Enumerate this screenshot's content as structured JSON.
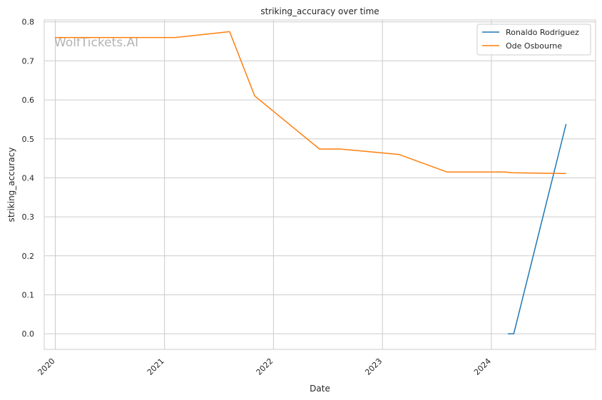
{
  "chart_data": {
    "type": "line",
    "title": "striking_accuracy over time",
    "xlabel": "Date",
    "ylabel": "striking_accuracy",
    "watermark": "WolfTickets.AI",
    "x_ticks": [
      "2020",
      "2021",
      "2022",
      "2023",
      "2024"
    ],
    "y_ticks": [
      "0.0",
      "0.1",
      "0.2",
      "0.3",
      "0.4",
      "0.5",
      "0.6",
      "0.7",
      "0.8"
    ],
    "xlim": [
      "2019-11-25",
      "2024-12-15"
    ],
    "ylim": [
      -0.04,
      0.805
    ],
    "grid": true,
    "legend_position": "top-right",
    "series": [
      {
        "name": "Ronaldo Rodriguez",
        "color": "#1f77b4",
        "points": [
          {
            "x": "2024-02-25",
            "y": 0.0
          },
          {
            "x": "2024-03-16",
            "y": 0.0
          },
          {
            "x": "2024-09-07",
            "y": 0.538
          }
        ]
      },
      {
        "name": "Ode Osbourne",
        "color": "#ff7f0e",
        "points": [
          {
            "x": "2020-01-01",
            "y": 0.76
          },
          {
            "x": "2021-02-06",
            "y": 0.76
          },
          {
            "x": "2021-08-07",
            "y": 0.775
          },
          {
            "x": "2021-10-30",
            "y": 0.61
          },
          {
            "x": "2022-06-04",
            "y": 0.474
          },
          {
            "x": "2022-08-13",
            "y": 0.474
          },
          {
            "x": "2023-02-25",
            "y": 0.46
          },
          {
            "x": "2023-08-05",
            "y": 0.415
          },
          {
            "x": "2024-02-17",
            "y": 0.415
          },
          {
            "x": "2024-03-09",
            "y": 0.413
          },
          {
            "x": "2024-09-07",
            "y": 0.411
          }
        ]
      }
    ]
  }
}
